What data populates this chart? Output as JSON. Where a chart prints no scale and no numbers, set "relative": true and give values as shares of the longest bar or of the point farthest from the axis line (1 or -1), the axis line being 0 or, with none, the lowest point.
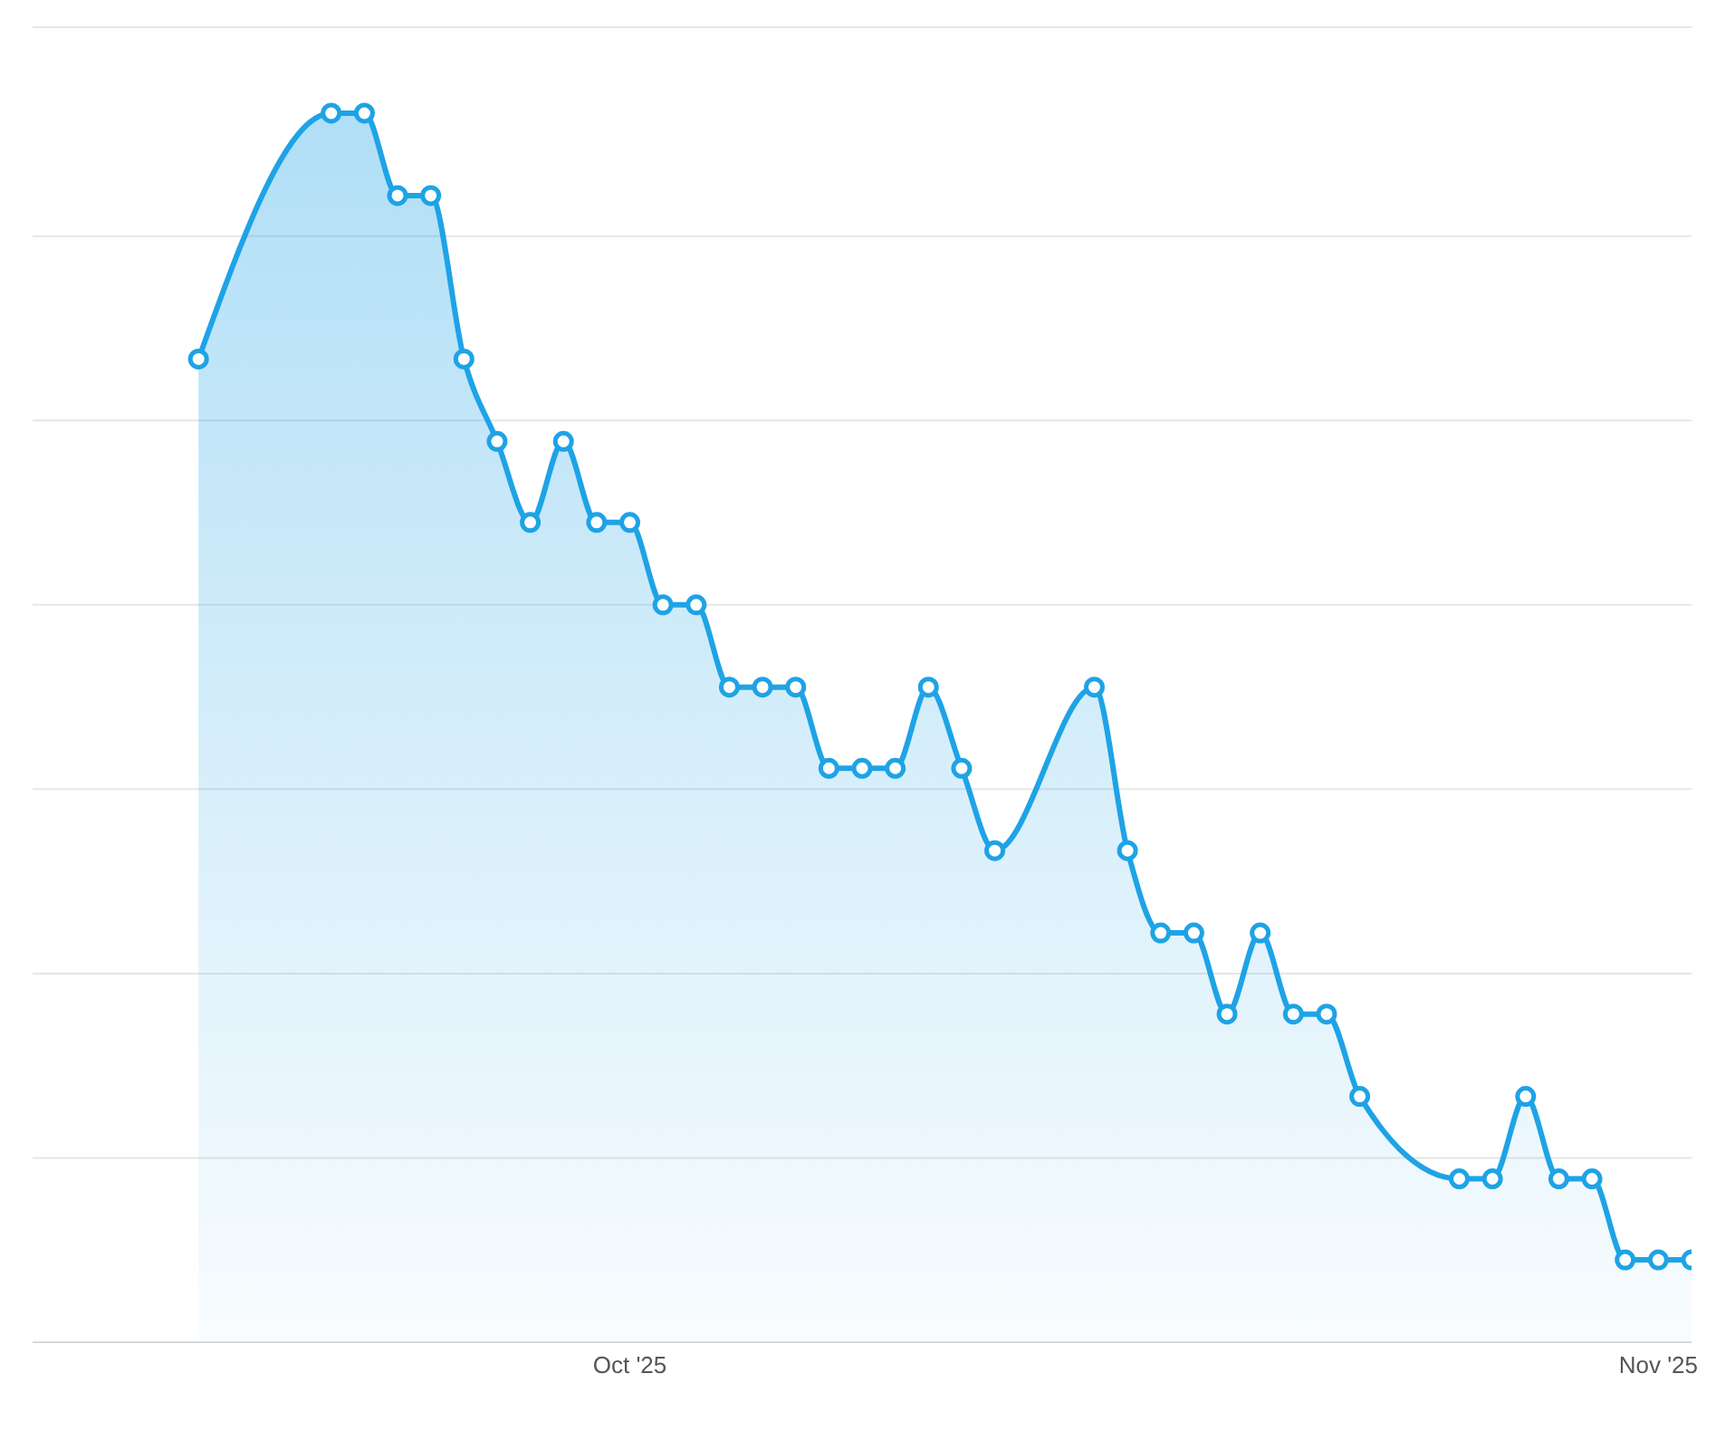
{
  "chart_data": {
    "type": "area",
    "relative": true,
    "grid": "y",
    "marker": "circle",
    "line_style": "solid",
    "x": [
      "2025-09-18",
      "2025-09-22",
      "2025-09-23",
      "2025-09-24",
      "2025-09-25",
      "2025-09-26",
      "2025-09-27",
      "2025-09-28",
      "2025-09-29",
      "2025-09-30",
      "2025-10-01",
      "2025-10-02",
      "2025-10-03",
      "2025-10-04",
      "2025-10-05",
      "2025-10-06",
      "2025-10-07",
      "2025-10-08",
      "2025-10-09",
      "2025-10-10",
      "2025-10-11",
      "2025-10-12",
      "2025-10-15",
      "2025-10-16",
      "2025-10-17",
      "2025-10-18",
      "2025-10-19",
      "2025-10-20",
      "2025-10-21",
      "2025-10-22",
      "2025-10-23",
      "2025-10-26",
      "2025-10-27",
      "2025-10-28",
      "2025-10-29",
      "2025-10-30",
      "2025-10-31",
      "2025-11-01",
      "2025-11-02"
    ],
    "series": [
      {
        "color": "#1ea3e6",
        "values": [
          0.8,
          1,
          1,
          0.933,
          0.933,
          0.8,
          0.733,
          0.667,
          0.733,
          0.667,
          0.667,
          0.6,
          0.6,
          0.533,
          0.533,
          0.533,
          0.467,
          0.467,
          0.467,
          0.533,
          0.467,
          0.4,
          0.533,
          0.4,
          0.333,
          0.333,
          0.267,
          0.333,
          0.267,
          0.267,
          0.2,
          0.133,
          0.133,
          0.2,
          0.133,
          0.133,
          0.067,
          0.067,
          0.067
        ]
      }
    ],
    "xlim": [
      "2025-09-13",
      "2025-11-02"
    ],
    "xticks": [
      {
        "value": "2025-10-01",
        "label": "Oct '25"
      },
      {
        "value": "2025-11-01",
        "label": "Nov '25"
      }
    ]
  }
}
